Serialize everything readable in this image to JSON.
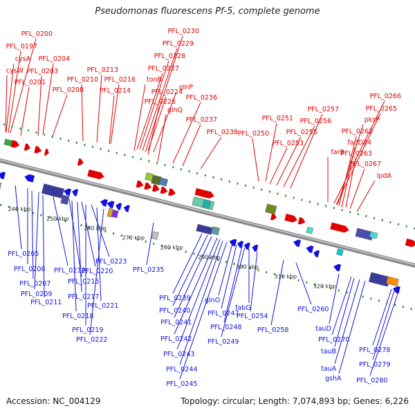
{
  "title": "Pseudomonas fluorescens Pf-5, complete genome",
  "footer": {
    "accession": "Accession: NC_004129",
    "topology": "Topology: circular; Length: 7,074,893 bp; Genes: 6,226"
  },
  "colors": {
    "forward": "#e00000",
    "reverse": "#1010e0",
    "backbone": "#8a8a8a",
    "tick": "#2e8b2e"
  },
  "kbp_marks": [
    "240 kbp",
    "250 kbp",
    "260 kbp",
    "270 kbp",
    "280 kbp",
    "290 kbp",
    "300 kbp",
    "310 kbp",
    "320 kbp"
  ],
  "forward_labels": [
    "PFL_0200",
    "PFL_0197",
    "cysA",
    "PFL_0204",
    "cysW",
    "PFL_0203",
    "PFL_0201",
    "PFL_0208",
    "PFL_0210",
    "PFL_0213",
    "PFL_0216",
    "PFL_0214",
    "PFL_0230",
    "PFL_0229",
    "PFL_0228",
    "PFL_0227",
    "tonB",
    "PFL_0224",
    "glnP",
    "PFL_0226",
    "PFL_0236",
    "glnQ",
    "PFL_0237",
    "PFL_0238",
    "PFL_0250",
    "PFL_0251",
    "PFL_0253",
    "PFL_0255",
    "PFL_0256",
    "PFL_0257",
    "PFL_0266",
    "PFL_0265",
    "pksP",
    "PFL_0262",
    "fadD24",
    "farB",
    "PFL_0263",
    "PFL_0267",
    "lpdA"
  ],
  "reverse_labels": [
    "PFL_0205",
    "PFL_0206",
    "PFL_0212",
    "PFL_0207",
    "PFL_0209",
    "PFL_0215",
    "PFL_0220",
    "PFL_0223",
    "PFL_0211",
    "PFL_0217",
    "PFL_0221",
    "PFL_0218",
    "PFL_0219",
    "PFL_0222",
    "PFL_0235",
    "PFL_0239",
    "PFL_0240",
    "PFL_0241",
    "PFL_0242",
    "PFL_0243",
    "PFL_0244",
    "PFL_0245",
    "glnO",
    "PFL_0247",
    "PFL_0248",
    "PFL_0249",
    "fabG",
    "PFL_0254",
    "PFL_0258",
    "PFL_0260",
    "tauD",
    "PFL_0270",
    "tauB",
    "tauA",
    "gshA",
    "PFL_0278",
    "PFL_0279",
    "PFL_0280"
  ]
}
